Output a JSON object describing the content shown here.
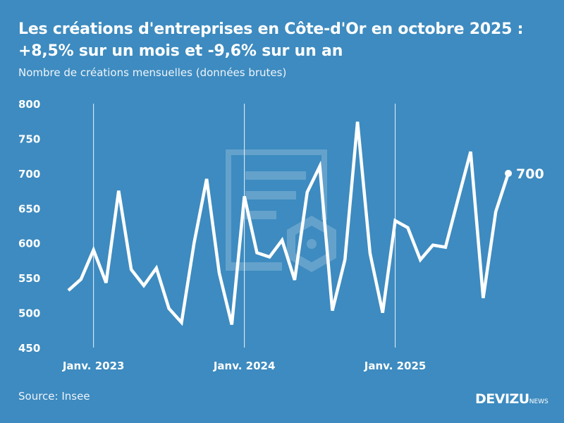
{
  "title_line1": "Les créations d'entreprises en Côte-d'Or en octobre 2025 :",
  "title_line2": "+8,5% sur un mois et -9,6% sur un an",
  "subtitle": "Nombre de créations mensuelles (données brutes)",
  "source": "Source: Insee",
  "logo": {
    "main": "DEVIZU",
    "suffix": "NEWS"
  },
  "colors": {
    "background": "#3d8bc0",
    "line": "#ffffff"
  },
  "chart_data": {
    "type": "line",
    "title": "Les créations d'entreprises en Côte-d'Or en octobre 2025 : +8,5% sur un mois et -9,6% sur un an",
    "ylabel": "Nombre de créations mensuelles (données brutes)",
    "ylim": [
      450,
      800
    ],
    "yticks": [
      "800",
      "750",
      "700",
      "650",
      "600",
      "550",
      "500",
      "450"
    ],
    "xtick_labels": [
      "Janv. 2023",
      "Janv. 2024",
      "Janv. 2025"
    ],
    "grid": "vertical lines at January",
    "x": [
      "2022-11",
      "2022-12",
      "2023-01",
      "2023-02",
      "2023-03",
      "2023-04",
      "2023-05",
      "2023-06",
      "2023-07",
      "2023-08",
      "2023-09",
      "2023-10",
      "2023-11",
      "2023-12",
      "2024-01",
      "2024-02",
      "2024-03",
      "2024-04",
      "2024-05",
      "2024-06",
      "2024-07",
      "2024-08",
      "2024-09",
      "2024-10",
      "2024-11",
      "2024-12",
      "2025-01",
      "2025-02",
      "2025-03",
      "2025-04",
      "2025-05",
      "2025-06",
      "2025-07",
      "2025-08",
      "2025-09",
      "2025-10"
    ],
    "values": [
      532,
      548,
      590,
      543,
      675,
      562,
      539,
      564,
      506,
      486,
      600,
      692,
      557,
      483,
      667,
      586,
      580,
      604,
      547,
      673,
      710,
      503,
      576,
      774,
      585,
      500,
      632,
      622,
      576,
      597,
      594,
      663,
      731,
      521,
      645,
      700
    ],
    "end_label": "700"
  }
}
